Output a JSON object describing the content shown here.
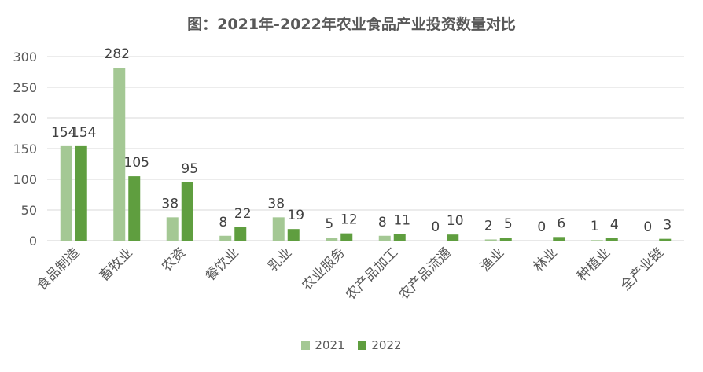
{
  "chart_data": {
    "type": "bar",
    "title": "图：2021年-2022年农业食品产业投资数量对比",
    "categories": [
      "食品制造",
      "畜牧业",
      "农资",
      "餐饮业",
      "乳业",
      "农业服务",
      "农产品加工",
      "农产品流通",
      "渔业",
      "林业",
      "种植业",
      "全产业链"
    ],
    "series": [
      {
        "name": "2021",
        "values": [
          154,
          282,
          38,
          8,
          38,
          5,
          8,
          0,
          2,
          0,
          1,
          0
        ],
        "color": "#A4C894"
      },
      {
        "name": "2022",
        "values": [
          154,
          105,
          95,
          22,
          19,
          12,
          11,
          10,
          5,
          6,
          4,
          3
        ],
        "color": "#5F9E3F"
      }
    ],
    "yticks": [
      0,
      50,
      100,
      150,
      200,
      250,
      300
    ],
    "ylim": [
      0,
      300
    ],
    "xlabel": "",
    "ylabel": "",
    "legend_position": "bottom",
    "grid": true
  }
}
